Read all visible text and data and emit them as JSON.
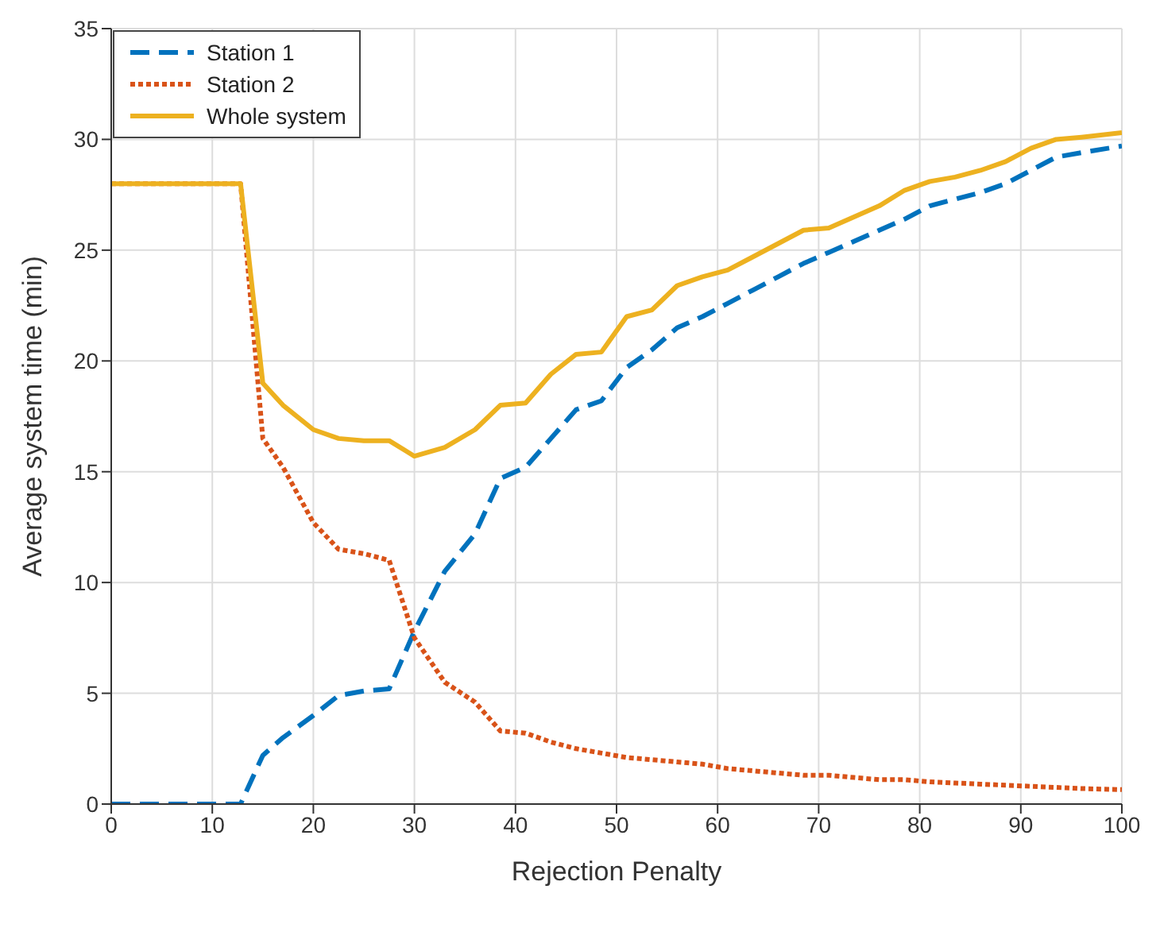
{
  "chart_data": {
    "type": "line",
    "xlabel": "Rejection Penalty",
    "ylabel": "Average system time (min)",
    "x": [
      0,
      12.8,
      15,
      17,
      20,
      22.5,
      25,
      27.5,
      30,
      33,
      36,
      38.5,
      41,
      43.5,
      46,
      48.5,
      51,
      53.5,
      56,
      58.5,
      61,
      63.5,
      66,
      68.5,
      71,
      73.5,
      76,
      78.5,
      81,
      83.5,
      86,
      88.5,
      91,
      93.5,
      96,
      100
    ],
    "series": [
      {
        "name": "Station 1",
        "color": "#0072bd",
        "line_style": "dashed",
        "values": [
          0,
          0,
          2.2,
          3,
          4,
          4.9,
          5.1,
          5.2,
          7.8,
          10.5,
          12.2,
          14.7,
          15.2,
          16.5,
          17.8,
          18.2,
          19.7,
          20.5,
          21.5,
          22,
          22.6,
          23.2,
          23.8,
          24.4,
          24.9,
          25.4,
          25.9,
          26.4,
          27,
          27.3,
          27.6,
          28,
          28.6,
          29.2,
          29.4,
          29.7
        ]
      },
      {
        "name": "Station 2",
        "color": "#d95319",
        "line_style": "dotted",
        "values": [
          28,
          28,
          16.5,
          15.2,
          12.7,
          11.5,
          11.3,
          11,
          7.5,
          5.5,
          4.6,
          3.3,
          3.2,
          2.8,
          2.5,
          2.3,
          2.1,
          2,
          1.9,
          1.8,
          1.6,
          1.5,
          1.4,
          1.3,
          1.3,
          1.2,
          1.1,
          1.1,
          1,
          0.95,
          0.9,
          0.85,
          0.8,
          0.75,
          0.7,
          0.65
        ]
      },
      {
        "name": "Whole system",
        "color": "#edb120",
        "line_style": "solid",
        "values": [
          28,
          28,
          19,
          18,
          16.9,
          16.5,
          16.4,
          16.4,
          15.7,
          16.1,
          16.9,
          18,
          18.1,
          19.4,
          20.3,
          20.4,
          22,
          22.3,
          23.4,
          23.8,
          24.1,
          24.7,
          25.3,
          25.9,
          26,
          26.5,
          27,
          27.7,
          28.1,
          28.3,
          28.6,
          29,
          29.6,
          30,
          30.1,
          30.3
        ]
      }
    ],
    "xlim": [
      0,
      100
    ],
    "xticks": [
      0,
      10,
      20,
      30,
      40,
      50,
      60,
      70,
      80,
      90,
      100
    ],
    "ylim": [
      0,
      35
    ],
    "yticks": [
      0,
      5,
      10,
      15,
      20,
      25,
      30,
      35
    ],
    "grid": true,
    "legend": "top left",
    "marker": "none"
  }
}
